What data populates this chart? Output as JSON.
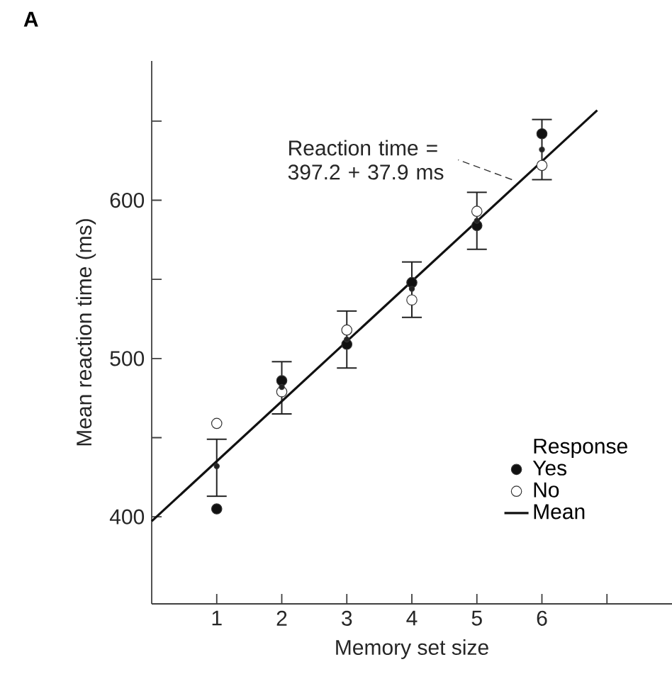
{
  "chart_data": {
    "type": "scatter",
    "title": "A",
    "xlabel": "Memory set size",
    "ylabel": "Mean reaction time (ms)",
    "legend_title": "Response",
    "x": [
      1,
      2,
      3,
      4,
      5,
      6
    ],
    "series": [
      {
        "name": "Yes",
        "color": "#111111",
        "marker": "circle",
        "values": [
          405,
          486,
          509,
          548,
          584,
          642
        ]
      },
      {
        "name": "No",
        "color": "#ffffff",
        "marker": "circle",
        "values": [
          459,
          479,
          518,
          537,
          593,
          622
        ]
      },
      {
        "color": "#222222",
        "marker": "circle",
        "values": [
          432,
          482,
          512,
          544,
          587,
          632
        ],
        "errors": [
          [
            413,
            449
          ],
          [
            465,
            498
          ],
          [
            494,
            530
          ],
          [
            526,
            561
          ],
          [
            569,
            605
          ],
          [
            613,
            651
          ]
        ]
      },
      {
        "name": "Mean",
        "type": "line",
        "color": "#111111",
        "line_style": "solid",
        "x": [
          0,
          6.85
        ],
        "values": [
          397.2,
          656.8
        ]
      }
    ],
    "annotations": [
      {
        "text": "Reaction time = 397.2 + 37.9 ms",
        "x": 5.54,
        "y": 613
      }
    ],
    "xlim": [
      0,
      8
    ],
    "xticks": [
      1,
      2,
      3,
      4,
      5,
      6,
      {
        "value": 7,
        "label": null
      }
    ],
    "ylim": [
      345,
      688
    ],
    "yticks": [
      400,
      {
        "value": 450,
        "label": null
      },
      500,
      {
        "value": 550,
        "label": null
      },
      600,
      {
        "value": 650,
        "label": null
      }
    ],
    "legend": "bottom right",
    "grid": false
  }
}
